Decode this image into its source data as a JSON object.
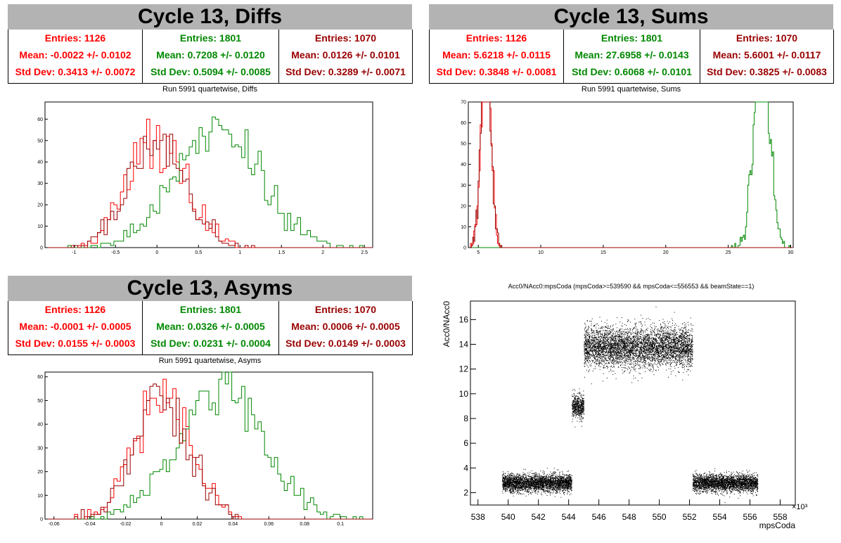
{
  "colors": {
    "red": "#ff0000",
    "green": "#008800",
    "darkred": "#990000",
    "titlebg": "#b3b3b3"
  },
  "panels": {
    "diffs": {
      "title": "Cycle 13, Diffs",
      "subtitle": "Run 5991 quartetwise, Diffs",
      "stats": [
        {
          "entries": "Entries: 1126",
          "mean": "Mean: -0.0022 +/- 0.0102",
          "std": "Std Dev: 0.3413 +/- 0.0072"
        },
        {
          "entries": "Entries: 1801",
          "mean": "Mean: 0.7208 +/- 0.0120",
          "std": "Std Dev: 0.5094 +/- 0.0085"
        },
        {
          "entries": "Entries: 1070",
          "mean": "Mean: 0.0126 +/- 0.0101",
          "std": "Std Dev: 0.3289 +/- 0.0071"
        }
      ]
    },
    "sums": {
      "title": "Cycle 13, Sums",
      "subtitle": "Run 5991 quartetwise, Sums",
      "stats": [
        {
          "entries": "Entries: 1126",
          "mean": "Mean: 5.6218 +/- 0.0115",
          "std": "Std Dev: 0.3848 +/- 0.0081"
        },
        {
          "entries": "Entries: 1801",
          "mean": "Mean: 27.6958 +/- 0.0143",
          "std": "Std Dev: 0.6068 +/- 0.0101"
        },
        {
          "entries": "Entries: 1070",
          "mean": "Mean: 5.6001 +/- 0.0117",
          "std": "Std Dev: 0.3825 +/- 0.0083"
        }
      ]
    },
    "asyms": {
      "title": "Cycle 13, Asyms",
      "subtitle": "Run 5991 quartetwise, Asyms",
      "stats": [
        {
          "entries": "Entries: 1126",
          "mean": "Mean: -0.0001 +/- 0.0005",
          "std": "Std Dev: 0.0155 +/- 0.0003"
        },
        {
          "entries": "Entries: 1801",
          "mean": "Mean: 0.0326 +/- 0.0005",
          "std": "Std Dev: 0.0231 +/- 0.0004"
        },
        {
          "entries": "Entries: 1070",
          "mean": "Mean: 0.0006 +/- 0.0005",
          "std": "Std Dev: 0.0149 +/- 0.0003"
        }
      ]
    },
    "scatter": {
      "subtitle": "Acc0/NAcc0:mpsCoda (mpsCoda>=539590 && mpsCoda<=556553 && beamState==1)"
    }
  },
  "chart_data": [
    {
      "type": "histogram",
      "id": "diffs",
      "xlim": [
        -1.35,
        2.6
      ],
      "ylim": [
        0,
        68
      ],
      "xticks": [
        -1,
        -0.5,
        0,
        0.5,
        1,
        1.5,
        2,
        2.5
      ],
      "yticks": [
        0,
        10,
        20,
        30,
        40,
        50,
        60
      ],
      "series": [
        {
          "color": "red",
          "entries": 1126,
          "mean": -0.0022,
          "std": 0.3413
        },
        {
          "color": "green",
          "entries": 1801,
          "mean": 0.7208,
          "std": 0.5094
        },
        {
          "color": "darkred",
          "entries": 1070,
          "mean": 0.0126,
          "std": 0.3289
        }
      ]
    },
    {
      "type": "histogram",
      "id": "sums",
      "xlim": [
        4.2,
        30.2
      ],
      "ylim": [
        0,
        70
      ],
      "xticks": [
        5,
        10,
        15,
        20,
        25,
        30
      ],
      "yticks": [
        0,
        10,
        20,
        30,
        40,
        50,
        60,
        70
      ],
      "series": [
        {
          "color": "red",
          "entries": 1126,
          "mean": 5.6218,
          "std": 0.3848
        },
        {
          "color": "green",
          "entries": 1801,
          "mean": 27.6958,
          "std": 0.6068
        },
        {
          "color": "darkred",
          "entries": 1070,
          "mean": 5.6001,
          "std": 0.3825
        }
      ]
    },
    {
      "type": "histogram",
      "id": "asyms",
      "xlim": [
        -0.065,
        0.118
      ],
      "ylim": [
        0,
        62
      ],
      "xticks": [
        -0.06,
        -0.04,
        -0.02,
        0,
        0.02,
        0.04,
        0.06,
        0.08,
        0.1
      ],
      "yticks": [
        0,
        10,
        20,
        30,
        40,
        50,
        60
      ],
      "series": [
        {
          "color": "red",
          "entries": 1126,
          "mean": -0.0001,
          "std": 0.0155
        },
        {
          "color": "green",
          "entries": 1801,
          "mean": 0.0326,
          "std": 0.0231
        },
        {
          "color": "darkred",
          "entries": 1070,
          "mean": 0.0006,
          "std": 0.0149
        }
      ]
    },
    {
      "type": "scatter",
      "id": "scatter",
      "xlabel": "mpsCoda",
      "ylabel": "Acc0/NAcc0",
      "xunit": "×10³",
      "xlim": [
        537.5,
        559
      ],
      "ylim": [
        1,
        17.5
      ],
      "xticks": [
        538,
        540,
        542,
        544,
        546,
        548,
        550,
        552,
        554,
        556,
        558
      ],
      "yticks": [
        2,
        4,
        6,
        8,
        10,
        12,
        14,
        16
      ],
      "clusters": [
        {
          "x": [
            539.6,
            544.2
          ],
          "y_center": 2.8,
          "y_spread": 0.35
        },
        {
          "x": [
            544.2,
            545.0
          ],
          "y_center": 9.0,
          "y_spread": 0.5
        },
        {
          "x": [
            545.0,
            552.2
          ],
          "y_center": 13.8,
          "y_spread": 0.8
        },
        {
          "x": [
            552.2,
            556.5
          ],
          "y_center": 2.8,
          "y_spread": 0.35
        }
      ]
    }
  ]
}
